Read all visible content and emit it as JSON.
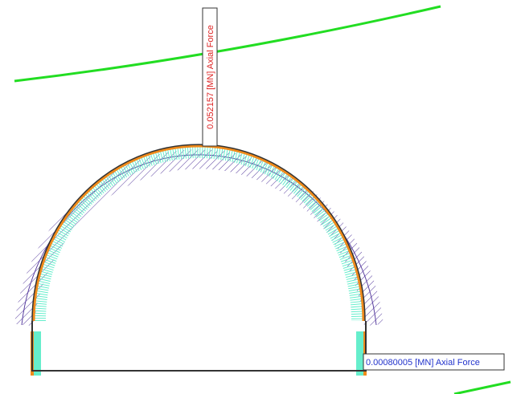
{
  "labels": [
    {
      "text": "0.052157 [MN] Axial Force"
    },
    {
      "text": "0.00080005 [MN] Axial Force"
    }
  ]
}
